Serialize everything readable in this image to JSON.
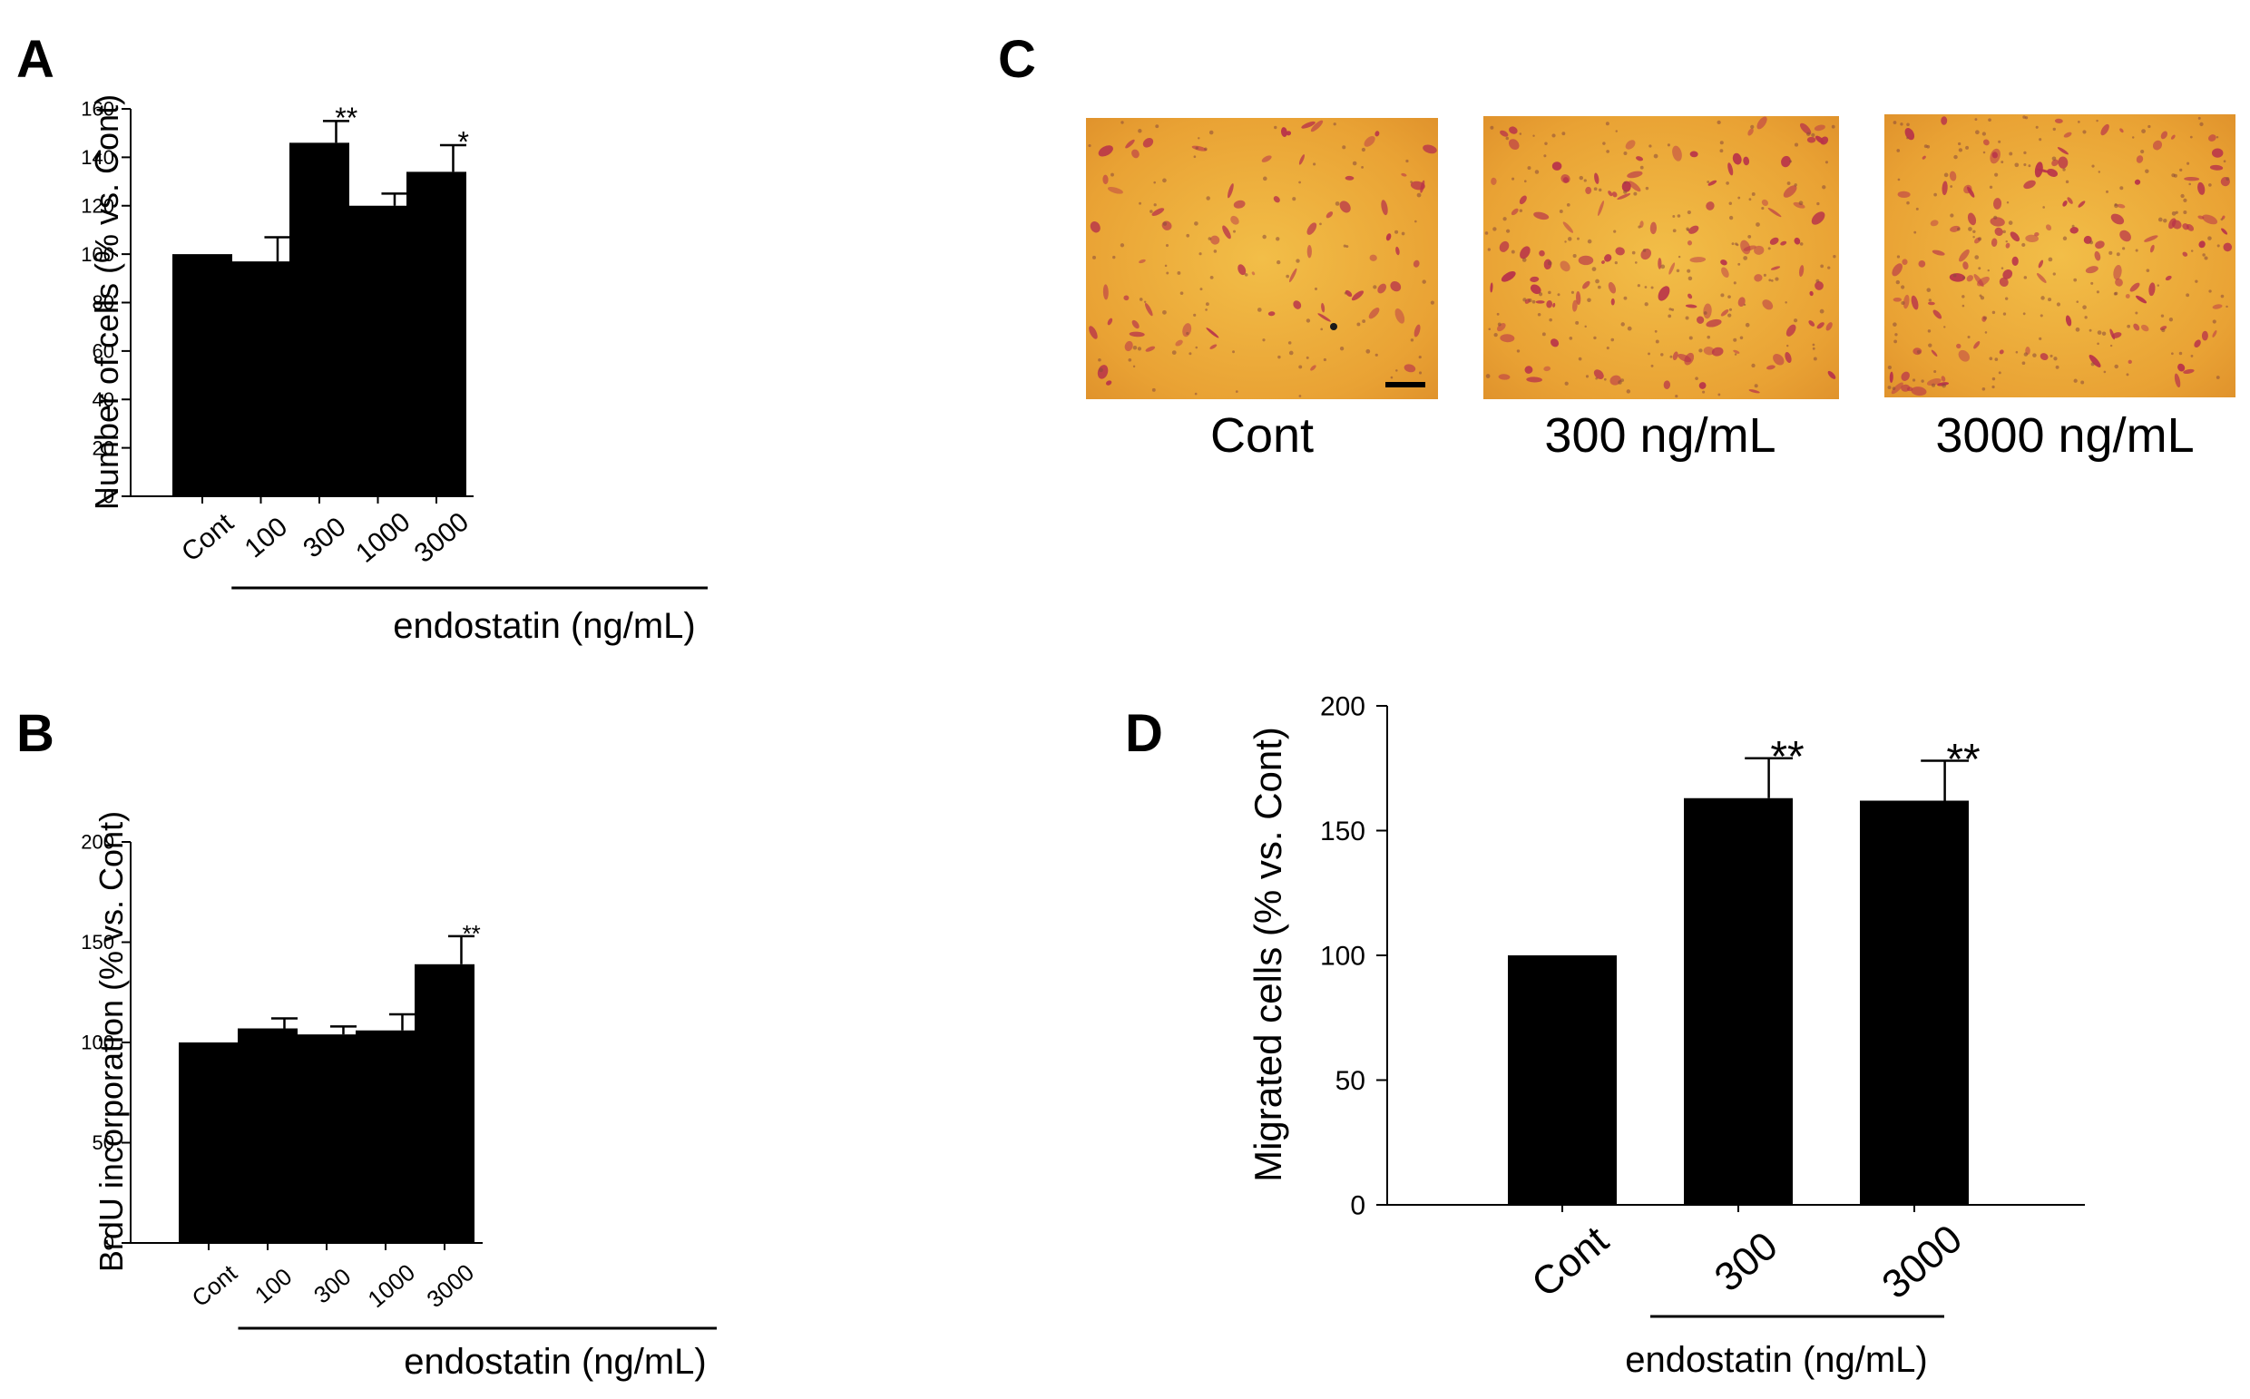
{
  "panel_letters": [
    "A",
    "B",
    "C",
    "D"
  ],
  "chart_data": [
    {
      "panel": "A",
      "type": "bar",
      "title": "",
      "categories": [
        "Cont",
        "100",
        "300",
        "1000",
        "3000"
      ],
      "values": [
        100,
        97,
        146,
        120,
        134
      ],
      "errors": [
        0,
        10,
        9,
        5,
        11
      ],
      "significance": [
        "",
        "",
        "**",
        "",
        "*"
      ],
      "xlabel": "endostatin (ng/mL)",
      "ylabel": "Number of cells (% vs. Cont)",
      "ylim": [
        0,
        160
      ],
      "yticks": [
        0,
        20,
        40,
        60,
        80,
        100,
        120,
        140,
        160
      ],
      "bracket_start_category": "100",
      "bar_color": "#000000"
    },
    {
      "panel": "B",
      "type": "bar",
      "title": "",
      "categories": [
        "Cont",
        "100",
        "300",
        "1000",
        "3000"
      ],
      "values": [
        100,
        107,
        104,
        106,
        139
      ],
      "errors": [
        0,
        5,
        4,
        8,
        14
      ],
      "significance": [
        "",
        "",
        "",
        "",
        "**"
      ],
      "xlabel": "endostatin (ng/mL)",
      "ylabel": "BrdU incorporation (% vs. Cont)",
      "ylim": [
        0,
        200
      ],
      "yticks": [
        0,
        50,
        100,
        150,
        200
      ],
      "bracket_start_category": "100",
      "bar_color": "#000000"
    },
    {
      "panel": "D",
      "type": "bar",
      "title": "",
      "categories": [
        "Cont",
        "300",
        "3000"
      ],
      "values": [
        100,
        163,
        162
      ],
      "errors": [
        0,
        16,
        16
      ],
      "significance": [
        "",
        "**",
        "**"
      ],
      "xlabel": "endostatin (ng/mL)",
      "ylabel": "Migrated cells (% vs. Cont)",
      "ylim": [
        0,
        200
      ],
      "yticks": [
        0,
        50,
        100,
        150,
        200
      ],
      "bracket_start_category": "300",
      "bar_color": "#000000"
    }
  ],
  "micrographs": {
    "panel": "C",
    "images": [
      {
        "caption": "Cont",
        "description": "stained migrated cells, control"
      },
      {
        "caption": "300 ng/mL",
        "description": "stained migrated cells, 300 ng/mL"
      },
      {
        "caption": "3000 ng/mL",
        "description": "stained migrated cells, 3000 ng/mL"
      }
    ],
    "background_color": "#E9A234",
    "cell_color": "#B8324A",
    "scale_bar_color": "#000000"
  }
}
